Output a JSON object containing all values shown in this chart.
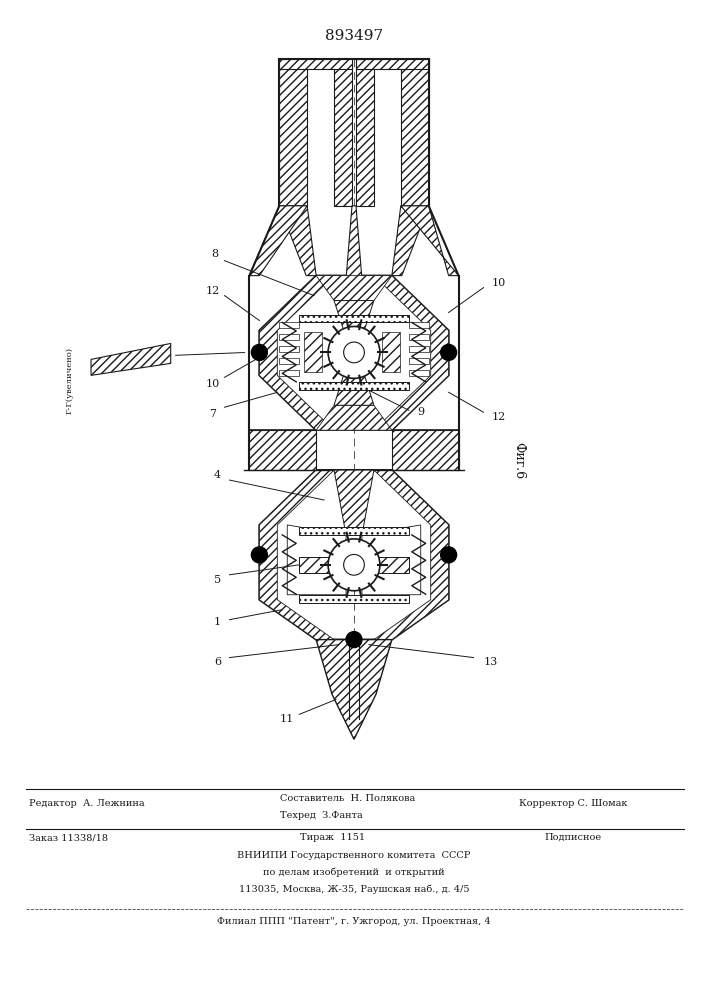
{
  "patent_number": "893497",
  "bg_color": "#ffffff",
  "line_color": "#1a1a1a",
  "fig_label": "Фиг.6",
  "footer": {
    "line1_left": "Редактор  А. Лежнина",
    "line1_mid_top": "Составитель  Н. Полякова",
    "line1_mid_bot": "Техред  З.Фанта",
    "line1_right": "Корректор С. Шомак",
    "line2_left": "Заказ 11338/18",
    "line2_mid": "Тираж  1151",
    "line2_right": "Подписное",
    "line3": "ВНИИПИ Государственного комитета  СССР",
    "line4": "по делам изобретений  и открытий",
    "line5": "113035, Москва, Ж-35, Раушская наб., д. 4/5",
    "line6": "Филиал ППП \"Патент\", г. Ужгород, ул. Проектная, 4"
  }
}
